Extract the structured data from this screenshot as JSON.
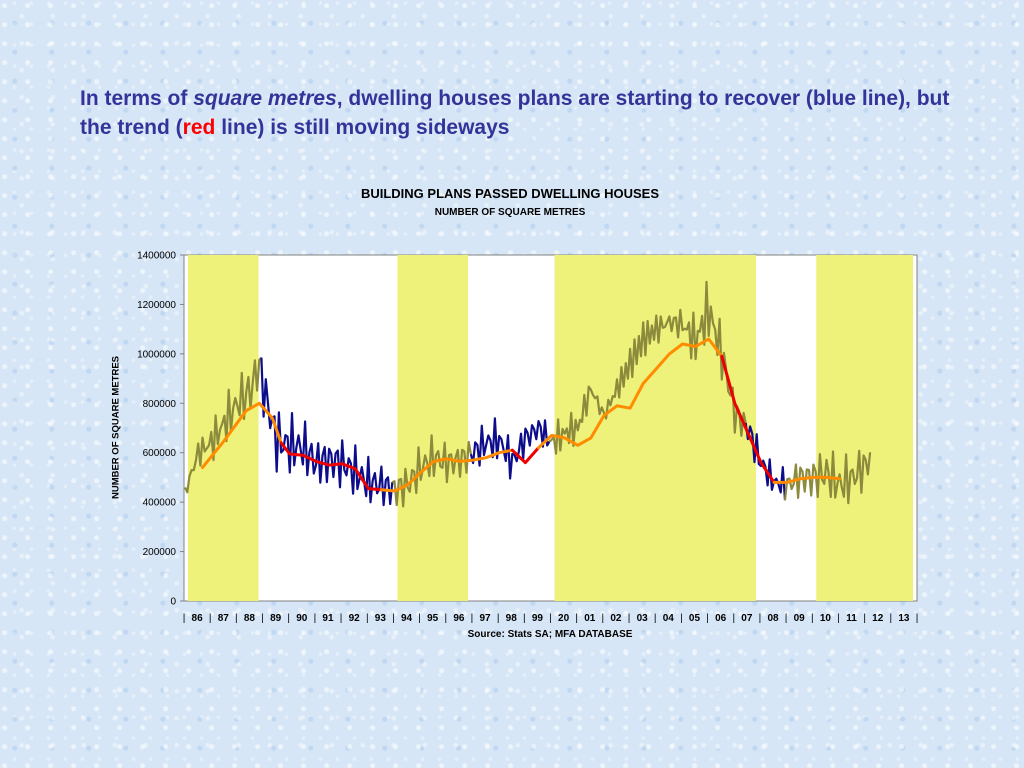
{
  "headline": {
    "part1": "In terms of ",
    "part2_italic": "square metres",
    "part3": ", dwelling houses plans are starting to recover (blue line), but the trend (",
    "part4_red": "red",
    "part5": " line) is still moving sideways"
  },
  "colors": {
    "headline": "#333399",
    "shade": "#eef27a",
    "olive_series": "#8c8a3c",
    "blue_series": "#0d0d8c",
    "trend_orange": "#ff8c00",
    "trend_red": "#ee0000",
    "background": "#d6e6f6"
  },
  "chart_data": {
    "type": "line",
    "title": "BUILDING PLANS PASSED  DWELLING HOUSES",
    "subtitle": "NUMBER OF SQUARE METRES",
    "ylabel": "NUMBER OF SQUARE METRES",
    "source": "Source:  Stats SA;  MFA DATABASE",
    "ylim": [
      0,
      1400000
    ],
    "yticks": [
      "0",
      "200000",
      "400000",
      "600000",
      "800000",
      "1000000",
      "1200000",
      "1400000"
    ],
    "year_labels": [
      "86",
      "87",
      "88",
      "89",
      "90",
      "91",
      "92",
      "93",
      "94",
      "95",
      "96",
      "97",
      "98",
      "99",
      "20",
      "01",
      "02",
      "03",
      "04",
      "05",
      "06",
      "07",
      "08",
      "09",
      "10",
      "11",
      "12",
      "13"
    ],
    "shaded_periods": [
      [
        "86",
        "88"
      ],
      [
        "94",
        "96"
      ],
      [
        "20",
        "07"
      ],
      [
        "10",
        "13"
      ]
    ],
    "monthly_series": {
      "start": "1986-01",
      "monthly_anchors": [
        [
          0,
          440000
        ],
        [
          6,
          600000
        ],
        [
          12,
          640000
        ],
        [
          18,
          720000
        ],
        [
          24,
          800000
        ],
        [
          30,
          850000
        ],
        [
          34,
          960000
        ],
        [
          36,
          860000
        ],
        [
          42,
          650000
        ],
        [
          48,
          630000
        ],
        [
          54,
          620000
        ],
        [
          60,
          560000
        ],
        [
          66,
          570000
        ],
        [
          72,
          560000
        ],
        [
          78,
          520000
        ],
        [
          84,
          480000
        ],
        [
          90,
          470000
        ],
        [
          96,
          450000
        ],
        [
          102,
          470000
        ],
        [
          108,
          540000
        ],
        [
          114,
          580000
        ],
        [
          120,
          560000
        ],
        [
          126,
          570000
        ],
        [
          132,
          600000
        ],
        [
          138,
          640000
        ],
        [
          144,
          650000
        ],
        [
          150,
          560000
        ],
        [
          156,
          660000
        ],
        [
          162,
          700000
        ],
        [
          168,
          640000
        ],
        [
          174,
          680000
        ],
        [
          180,
          700000
        ],
        [
          186,
          860000
        ],
        [
          192,
          750000
        ],
        [
          198,
          860000
        ],
        [
          204,
          960000
        ],
        [
          210,
          1060000
        ],
        [
          216,
          1100000
        ],
        [
          222,
          1130000
        ],
        [
          228,
          1120000
        ],
        [
          234,
          1050000
        ],
        [
          240,
          1180000
        ],
        [
          246,
          1000000
        ],
        [
          252,
          760000
        ],
        [
          258,
          700000
        ],
        [
          264,
          560000
        ],
        [
          270,
          480000
        ],
        [
          276,
          470000
        ],
        [
          282,
          500000
        ],
        [
          288,
          500000
        ],
        [
          294,
          520000
        ],
        [
          300,
          470000
        ],
        [
          306,
          500000
        ],
        [
          312,
          550000
        ],
        [
          314,
          580000
        ]
      ],
      "amplitude_anchors": [
        [
          0,
          60000
        ],
        [
          30,
          130000
        ],
        [
          42,
          110000
        ],
        [
          60,
          90000
        ],
        [
          90,
          70000
        ],
        [
          120,
          70000
        ],
        [
          150,
          80000
        ],
        [
          180,
          90000
        ],
        [
          204,
          130000
        ],
        [
          240,
          150000
        ],
        [
          252,
          110000
        ],
        [
          270,
          50000
        ],
        [
          290,
          90000
        ],
        [
          314,
          70000
        ]
      ],
      "blue_month_ranges": [
        [
          36,
          96
        ],
        [
          132,
          168
        ],
        [
          258,
          276
        ]
      ]
    },
    "trend_line": {
      "points": [
        [
          8,
          540000
        ],
        [
          18,
          650000
        ],
        [
          28,
          770000
        ],
        [
          34,
          800000
        ],
        [
          40,
          740000
        ],
        [
          44,
          640000
        ],
        [
          48,
          595000
        ],
        [
          54,
          590000
        ],
        [
          60,
          565000
        ],
        [
          66,
          550000
        ],
        [
          72,
          555000
        ],
        [
          78,
          535000
        ],
        [
          84,
          455000
        ],
        [
          90,
          450000
        ],
        [
          96,
          445000
        ],
        [
          102,
          470000
        ],
        [
          108,
          520000
        ],
        [
          114,
          565000
        ],
        [
          120,
          575000
        ],
        [
          126,
          565000
        ],
        [
          132,
          570000
        ],
        [
          138,
          580000
        ],
        [
          144,
          600000
        ],
        [
          150,
          610000
        ],
        [
          156,
          560000
        ],
        [
          162,
          620000
        ],
        [
          168,
          670000
        ],
        [
          174,
          660000
        ],
        [
          180,
          630000
        ],
        [
          186,
          660000
        ],
        [
          192,
          750000
        ],
        [
          198,
          790000
        ],
        [
          204,
          780000
        ],
        [
          210,
          880000
        ],
        [
          216,
          940000
        ],
        [
          222,
          1000000
        ],
        [
          228,
          1040000
        ],
        [
          234,
          1030000
        ],
        [
          240,
          1060000
        ],
        [
          246,
          990000
        ],
        [
          252,
          800000
        ],
        [
          258,
          680000
        ],
        [
          264,
          560000
        ],
        [
          270,
          480000
        ],
        [
          276,
          480000
        ],
        [
          282,
          495000
        ],
        [
          288,
          500000
        ],
        [
          294,
          500000
        ],
        [
          300,
          495000
        ]
      ],
      "red_month_ranges": [
        [
          48,
          96
        ],
        [
          156,
          168
        ],
        [
          252,
          276
        ]
      ]
    }
  }
}
